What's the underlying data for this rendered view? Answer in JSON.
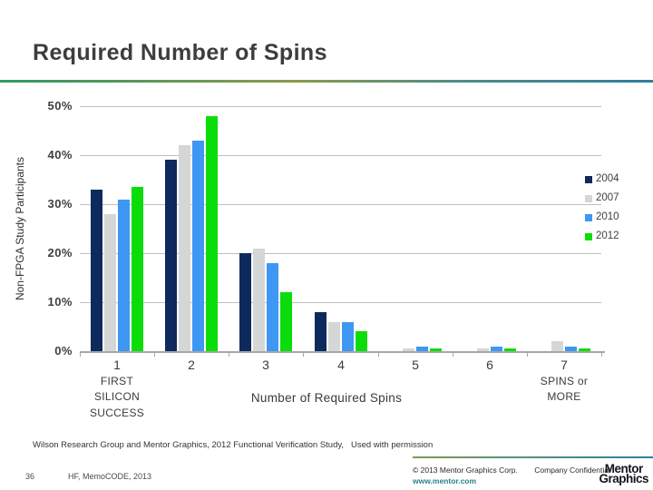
{
  "slide": {
    "title": "Required Number of Spins",
    "footnote": "Wilson Research Group and Mentor Graphics, 2012 Functional Verification Study,   Used with permission",
    "page_number": "36",
    "footer_reference": "HF, MemoCODE, 2013",
    "copyright": "© 2013 Mentor Graphics Corp.",
    "confidential": "Company Confidential",
    "website": "www.mentor.com",
    "logo": {
      "line1": "Mentor",
      "line2": "Graphics"
    }
  },
  "colors": {
    "header_gradient_left": "#2f9a63",
    "header_gradient_mid": "#8a9b4a",
    "header_gradient_right": "#2d7f9e",
    "website_teal": "#26808c",
    "grid_gray": "#bfbfbf",
    "axis_gray": "#a6a6a6",
    "title_gray": "#3d3d3d"
  },
  "chart_data": {
    "type": "bar",
    "title": "",
    "categories": [
      "1",
      "2",
      "3",
      "4",
      "5",
      "6",
      "7"
    ],
    "category_sublabels": [
      "FIRST\nSILICON\nSUCCESS",
      "",
      "",
      "",
      "",
      "",
      "SPINS or\nMORE"
    ],
    "xlabel": "Number of Required Spins",
    "ylabel": "Non-FPGA Study Participants",
    "ylim": [
      0,
      50
    ],
    "ytick_labels": [
      "0%",
      "10%",
      "20%",
      "30%",
      "40%",
      "50%"
    ],
    "grid": true,
    "legend_position": "right",
    "series": [
      {
        "name": "2004",
        "color": "#0e2a5c",
        "values": [
          33,
          39,
          20,
          8,
          0,
          0,
          0
        ]
      },
      {
        "name": "2007",
        "color": "#d5d7d7",
        "values": [
          28,
          42,
          21,
          6,
          0.5,
          0.5,
          2
        ]
      },
      {
        "name": "2010",
        "color": "#3e97f2",
        "values": [
          31,
          43,
          18,
          6,
          1,
          1,
          1
        ]
      },
      {
        "name": "2012",
        "color": "#0bdd0b",
        "values": [
          33.5,
          48,
          12,
          4,
          0.5,
          0.5,
          0.5
        ]
      }
    ]
  }
}
